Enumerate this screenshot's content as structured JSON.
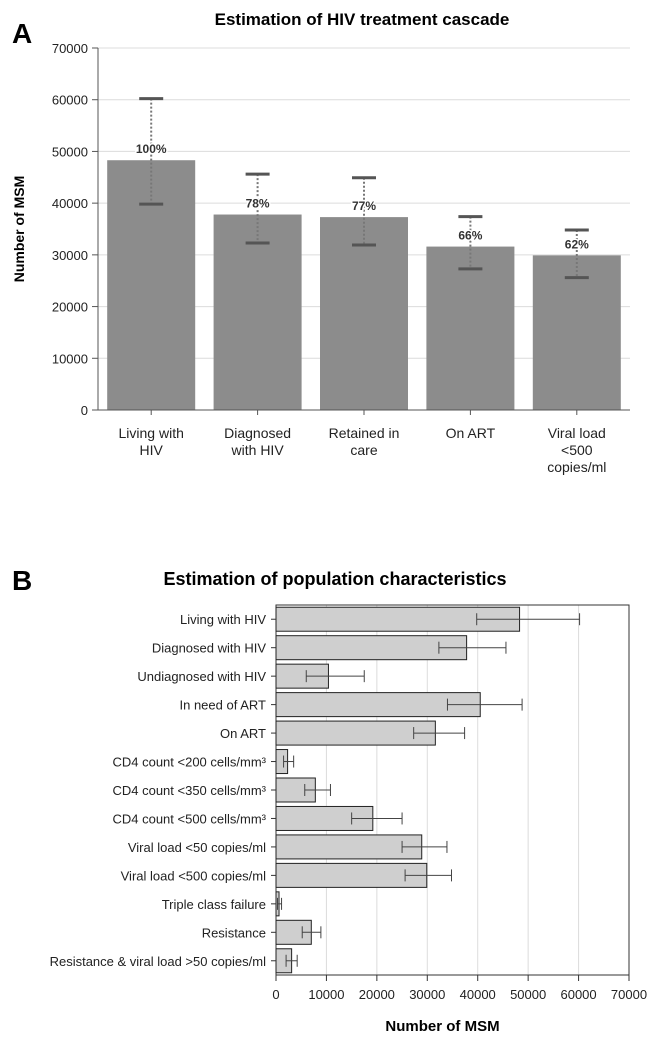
{
  "panels": {
    "a_label": "A",
    "b_label": "B"
  },
  "chart_data": [
    {
      "type": "bar",
      "title": "Estimation of HIV treatment cascade",
      "xlabel": "",
      "ylabel": "Number of MSM",
      "ylim": [
        0,
        70000
      ],
      "yticks": [
        0,
        10000,
        20000,
        30000,
        40000,
        50000,
        60000,
        70000
      ],
      "grid": true,
      "bar_color": "#8c8c8c",
      "categories": [
        [
          "Living with",
          "HIV"
        ],
        [
          "Diagnosed",
          "with HIV"
        ],
        [
          "Retained in",
          "care"
        ],
        [
          "On ART"
        ],
        [
          "Viral load",
          "<500",
          "copies/ml"
        ]
      ],
      "values": [
        48300,
        37800,
        37300,
        31600,
        29900
      ],
      "error_low": [
        39800,
        32300,
        31900,
        27300,
        25600
      ],
      "error_high": [
        60200,
        45600,
        44900,
        37400,
        34800
      ],
      "data_labels": [
        "100%",
        "78%",
        "77%",
        "66%",
        "62%"
      ]
    },
    {
      "type": "bar",
      "orientation": "horizontal",
      "title": "Estimation of population characteristics",
      "xlabel": "Number of MSM",
      "ylabel": "",
      "xlim": [
        0,
        70000
      ],
      "xticks": [
        0,
        10000,
        20000,
        30000,
        40000,
        50000,
        60000,
        70000
      ],
      "grid": true,
      "bar_color": "#cfcfcf",
      "categories": [
        "Living with HIV",
        "Diagnosed with HIV",
        "Undiagnosed with HIV",
        "In need of ART",
        "On ART",
        "CD4 count <200 cells/mm³",
        "CD4 count <350 cells/mm³",
        "CD4 count <500 cells/mm³",
        "Viral load <50 copies/ml",
        "Viral load <500 copies/ml",
        "Triple class failure",
        "Resistance",
        "Resistance & viral load >50 copies/ml"
      ],
      "values": [
        48300,
        37800,
        10400,
        40500,
        31600,
        2300,
        7800,
        19200,
        28900,
        29900,
        600,
        7000,
        3100
      ],
      "error_low": [
        39800,
        32300,
        6000,
        34000,
        27300,
        1500,
        5700,
        15000,
        25000,
        25600,
        300,
        5200,
        2000
      ],
      "error_high": [
        60200,
        45600,
        17500,
        48800,
        37400,
        3500,
        10800,
        25000,
        33900,
        34800,
        1100,
        8900,
        4200
      ]
    }
  ]
}
